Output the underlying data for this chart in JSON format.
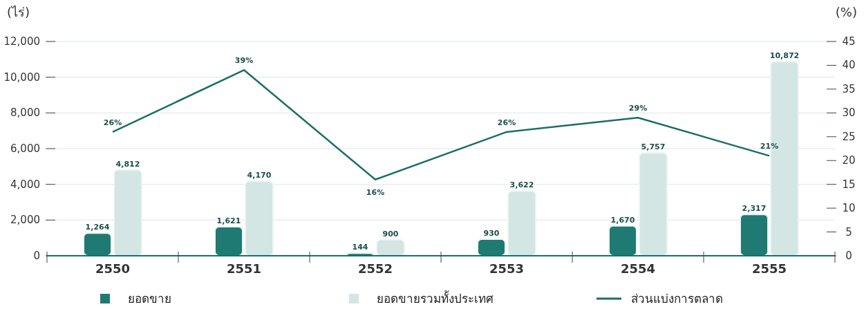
{
  "chart_data": {
    "type": "bar",
    "ylabel": "(ไร่)",
    "y2label": "(%)",
    "categories": [
      "2550",
      "2551",
      "2552",
      "2553",
      "2554",
      "2555"
    ],
    "series": [
      {
        "name": "ยอดขาย",
        "color": "#1e7a72",
        "values": [
          1264,
          1621,
          144,
          930,
          1670,
          2317
        ],
        "value_labels": [
          "1,264",
          "1,621",
          "144",
          "930",
          "1,670",
          "2,317"
        ]
      },
      {
        "name": "ยอดขายรวมทั้งประเทศ",
        "color": "#d3e6e3",
        "values": [
          4812,
          4170,
          900,
          3622,
          5757,
          10872
        ],
        "value_labels": [
          "4,812",
          "4,170",
          "900",
          "3,622",
          "5,757",
          "10,872"
        ]
      },
      {
        "name": "ส่วนแบ่งการตลาด",
        "type": "line",
        "axis": "y2",
        "color": "#1a6e68",
        "values": [
          26,
          39,
          16,
          26,
          29,
          21
        ],
        "value_labels": [
          "26%",
          "39%",
          "16%",
          "26%",
          "29%",
          "21%"
        ]
      }
    ],
    "ylim": [
      0,
      12000
    ],
    "yticks": [
      0,
      {
        "value": 2000,
        "label": "2,000"
      },
      {
        "value": 4000,
        "label": "4,000"
      },
      {
        "value": 6000,
        "label": "6,000"
      },
      {
        "value": 8000,
        "label": "8,000"
      },
      {
        "value": 10000,
        "label": "10,000"
      },
      {
        "value": 12000,
        "label": "12,000"
      }
    ],
    "y2lim": [
      0,
      45
    ],
    "y2ticks": [
      0,
      5,
      10,
      15,
      20,
      25,
      30,
      35,
      40,
      45
    ],
    "grid": "y",
    "legend": "bottom",
    "marker": "none"
  }
}
